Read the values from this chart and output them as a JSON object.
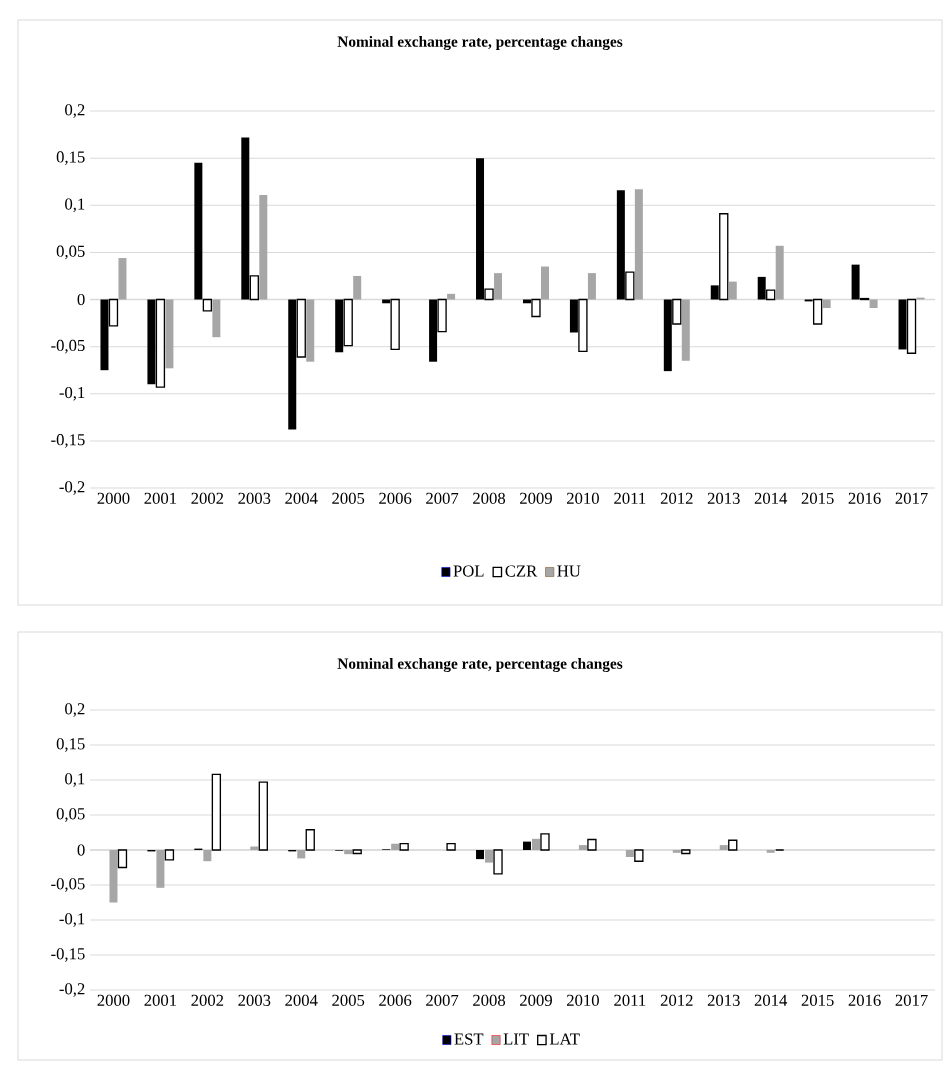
{
  "chart_data": [
    {
      "type": "bar",
      "title": "Nominal exchange rate, percentage changes",
      "categories": [
        "2000",
        "2001",
        "2002",
        "2003",
        "2004",
        "2005",
        "2006",
        "2007",
        "2008",
        "2009",
        "2010",
        "2011",
        "2012",
        "2013",
        "2014",
        "2015",
        "2016",
        "2017"
      ],
      "series": [
        {
          "name": "POL",
          "color": "#000000",
          "values": [
            -0.075,
            -0.09,
            0.145,
            0.172,
            -0.138,
            -0.056,
            -0.004,
            -0.066,
            0.15,
            -0.004,
            -0.035,
            0.116,
            -0.076,
            0.015,
            0.024,
            -0.002,
            0.037,
            -0.053
          ]
        },
        {
          "name": "CZR",
          "color": "#ffffff",
          "values": [
            -0.028,
            -0.093,
            -0.012,
            0.025,
            -0.061,
            -0.049,
            -0.053,
            -0.034,
            0.011,
            -0.018,
            -0.055,
            0.029,
            -0.026,
            0.091,
            0.01,
            -0.026,
            0.001,
            -0.057
          ]
        },
        {
          "name": "HU",
          "color": "#a6a6a6",
          "values": [
            0.044,
            -0.073,
            -0.04,
            0.111,
            -0.066,
            0.025,
            null,
            0.006,
            0.028,
            0.035,
            0.028,
            0.117,
            -0.065,
            0.019,
            0.057,
            -0.009,
            -0.009,
            0.002
          ]
        }
      ],
      "ylim": [
        -0.2,
        0.2
      ],
      "yticks": [
        {
          "value": -0.2,
          "label": "-0,2"
        },
        {
          "value": -0.15,
          "label": "-0,15"
        },
        {
          "value": -0.1,
          "label": "-0,1"
        },
        {
          "value": -0.05,
          "label": "-0,05"
        },
        {
          "value": 0,
          "label": "0"
        },
        {
          "value": 0.05,
          "label": "0,05"
        },
        {
          "value": 0.1,
          "label": "0,1"
        },
        {
          "value": 0.15,
          "label": "0,15"
        },
        {
          "value": 0.2,
          "label": "0,2"
        }
      ],
      "grid": "y",
      "legend": "bottom"
    },
    {
      "type": "bar",
      "title": "Nominal exchange rate, percentage changes",
      "categories": [
        "2000",
        "2001",
        "2002",
        "2003",
        "2004",
        "2005",
        "2006",
        "2007",
        "2008",
        "2009",
        "2010",
        "2011",
        "2012",
        "2013",
        "2014",
        "2015",
        "2016",
        "2017"
      ],
      "series": [
        {
          "name": "EST",
          "color": "#000000",
          "values": [
            0,
            -0.002,
            0.002,
            0,
            -0.002,
            -0.001,
            0.001,
            0,
            -0.013,
            0.012,
            0,
            0,
            0,
            0,
            0,
            null,
            null,
            null
          ]
        },
        {
          "name": "LIT",
          "color": "#a6a6a6",
          "values": [
            -0.075,
            -0.054,
            -0.016,
            0.005,
            -0.012,
            -0.006,
            0.009,
            null,
            -0.018,
            0.016,
            0.007,
            -0.01,
            -0.004,
            0.007,
            -0.004,
            null,
            null,
            null
          ]
        },
        {
          "name": "LAT",
          "color": "#ffffff",
          "values": [
            -0.025,
            -0.014,
            0.108,
            0.097,
            0.029,
            -0.005,
            0.009,
            0.009,
            -0.034,
            0.023,
            0.015,
            -0.016,
            -0.005,
            0.014,
            0,
            null,
            null,
            null
          ]
        }
      ],
      "ylim": [
        -0.2,
        0.2
      ],
      "yticks": [
        {
          "value": -0.2,
          "label": "-0,2"
        },
        {
          "value": -0.15,
          "label": "-0,15"
        },
        {
          "value": -0.1,
          "label": "-0,1"
        },
        {
          "value": -0.05,
          "label": "-0,05"
        },
        {
          "value": 0,
          "label": "0"
        },
        {
          "value": 0.05,
          "label": "0,05"
        },
        {
          "value": 0.1,
          "label": "0,1"
        },
        {
          "value": 0.15,
          "label": "0,15"
        },
        {
          "value": 0.2,
          "label": "0,2"
        }
      ],
      "grid": "y",
      "legend": "bottom"
    }
  ]
}
